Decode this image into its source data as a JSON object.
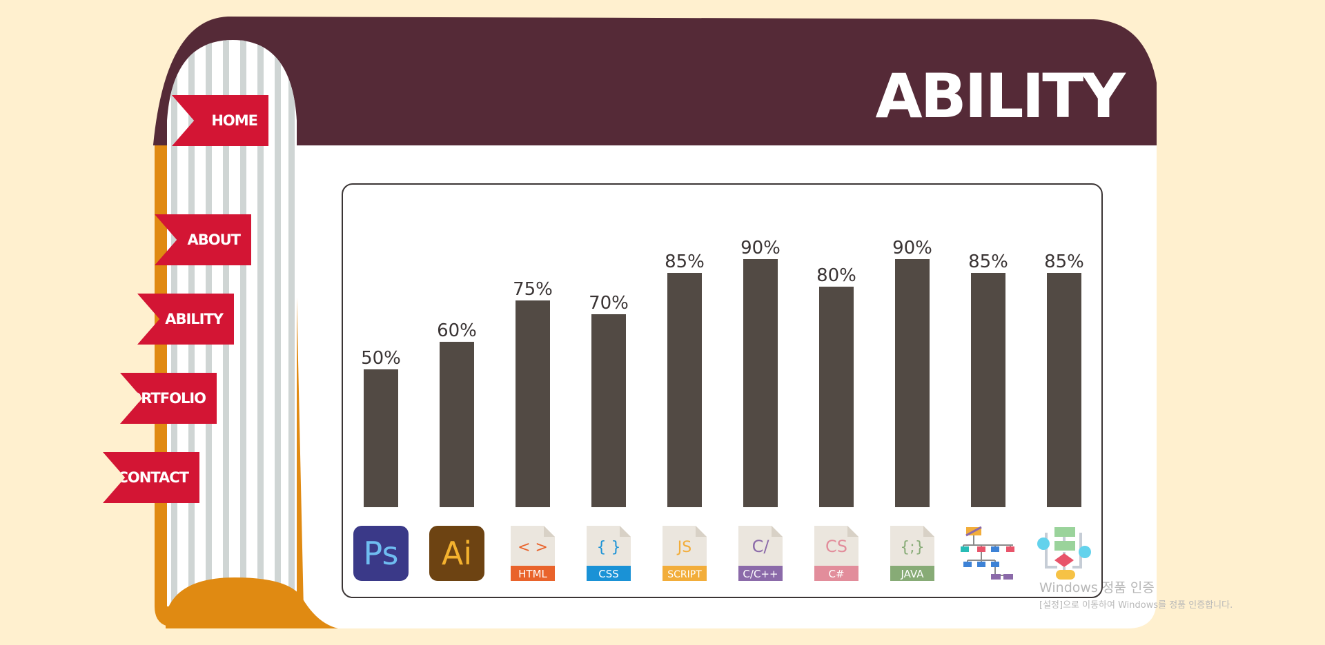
{
  "page": {
    "title": "ABILITY"
  },
  "nav": {
    "items": [
      {
        "label": "HOME"
      },
      {
        "label": "ABOUT"
      },
      {
        "label": "ABILITY"
      },
      {
        "label": "PORTFOLIO"
      },
      {
        "label": "CONTACT"
      }
    ]
  },
  "colors": {
    "background": "#fff0cf",
    "header": "#552a37",
    "spine": "#e08a12",
    "tab": "#d31534",
    "bar": "#524a44"
  },
  "chart_data": {
    "type": "bar",
    "title": "",
    "categories": [
      "Photoshop",
      "Illustrator",
      "HTML",
      "CSS",
      "JavaScript",
      "C/C++",
      "C#",
      "JAVA",
      "Data Structure",
      "Algorithm"
    ],
    "values": [
      50,
      60,
      75,
      70,
      85,
      90,
      80,
      90,
      85,
      85
    ],
    "value_labels": [
      "50%",
      "60%",
      "75%",
      "70%",
      "85%",
      "90%",
      "80%",
      "90%",
      "85%",
      "85%"
    ],
    "ylim": [
      0,
      100
    ],
    "xlabel": "",
    "ylabel": "",
    "grid": false
  },
  "icons": [
    {
      "name": "photoshop-icon",
      "label": "Ps",
      "bg": "#3a3988",
      "fg": "#6fbdf1"
    },
    {
      "name": "illustrator-icon",
      "label": "Ai",
      "bg": "#6d4312",
      "fg": "#f4b22e"
    },
    {
      "name": "html-file-icon",
      "symbol": "< >",
      "label": "HTML",
      "color": "#e9632b"
    },
    {
      "name": "css-file-icon",
      "symbol": "{ }",
      "label": "CSS",
      "color": "#1a92d6"
    },
    {
      "name": "javascript-file-icon",
      "symbol": "JS",
      "label": "SCRIPT",
      "color": "#f2ad3a"
    },
    {
      "name": "c-cpp-file-icon",
      "symbol": "C/",
      "label": "C/C++",
      "color": "#8b6aa9"
    },
    {
      "name": "csharp-file-icon",
      "symbol": "CS",
      "label": "C#",
      "color": "#e28d9b"
    },
    {
      "name": "java-file-icon",
      "symbol": "{;}",
      "label": "JAVA",
      "color": "#87ab76"
    },
    {
      "name": "hierarchy-diagram-icon"
    },
    {
      "name": "flowchart-icon"
    }
  ],
  "watermark": {
    "line1": "Windows 정품 인증",
    "line2": "[설정]으로 이동하여 Windows를 정품 인증합니다."
  }
}
